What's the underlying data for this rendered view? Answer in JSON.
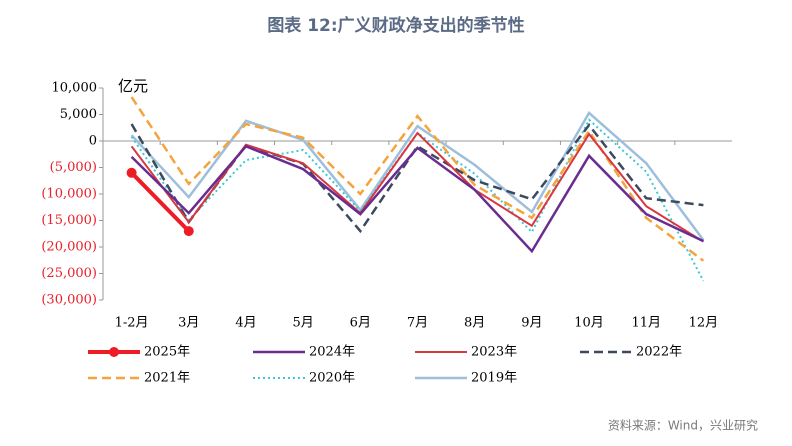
{
  "chart_data": {
    "type": "line",
    "title": "图表 12:广义财政净支出的季节性",
    "y_unit": "亿元",
    "source": "资料来源：Wind，兴业研究",
    "categories": [
      "1-2月",
      "3月",
      "4月",
      "5月",
      "6月",
      "7月",
      "8月",
      "9月",
      "10月",
      "11月",
      "12月"
    ],
    "ylim": [
      -30000,
      10000
    ],
    "yticks": [
      {
        "value": 10000,
        "label": "10,000"
      },
      {
        "value": 5000,
        "label": "5,000"
      },
      0,
      {
        "value": -5000,
        "label": "(5,000)"
      },
      {
        "value": -10000,
        "label": "(10,000)"
      },
      {
        "value": -15000,
        "label": "(15,000)"
      },
      {
        "value": -20000,
        "label": "(20,000)"
      },
      {
        "value": -25000,
        "label": "(25,000)"
      },
      {
        "value": -30000,
        "label": "(30,000)"
      }
    ],
    "series": [
      {
        "name": "2025年",
        "color": "#ee1c25",
        "dash": "solid",
        "width": 4,
        "marker": true,
        "values": [
          -6000,
          -17000,
          null,
          null,
          null,
          null,
          null,
          null,
          null,
          null,
          null
        ]
      },
      {
        "name": "2024年",
        "color": "#6a2c91",
        "dash": "solid",
        "width": 2.5,
        "values": [
          -3000,
          -13600,
          -1000,
          -5300,
          -13800,
          -1300,
          -9200,
          -20800,
          -2800,
          -13800,
          -18900
        ]
      },
      {
        "name": "2023年",
        "color": "#d9363e",
        "dash": "solid",
        "width": 2,
        "values": [
          -1000,
          -15300,
          -700,
          -4200,
          -13600,
          1500,
          -9200,
          -16000,
          1300,
          -12300,
          -19000
        ]
      },
      {
        "name": "2022年",
        "color": "#3b4a5e",
        "dash": "dashed",
        "width": 2.5,
        "values": [
          3200,
          -15300,
          -800,
          -4300,
          -17000,
          -1000,
          -7400,
          -11000,
          3000,
          -10800,
          -12100
        ]
      },
      {
        "name": "2021年",
        "color": "#f5a33c",
        "dash": "dashed",
        "width": 2.5,
        "values": [
          8300,
          -8100,
          3200,
          600,
          -10000,
          4700,
          -8300,
          -14500,
          1900,
          -14500,
          -22600
        ]
      },
      {
        "name": "2020年",
        "color": "#3cc8d6",
        "dash": "dotted",
        "width": 2,
        "values": [
          800,
          -14900,
          -3600,
          -1700,
          -13200,
          1500,
          -6200,
          -17200,
          4000,
          -5800,
          -26400
        ]
      },
      {
        "name": "2019年",
        "color": "#9dbfdc",
        "dash": "solid",
        "width": 2.5,
        "values": [
          1100,
          -10600,
          3800,
          200,
          -13000,
          2800,
          -4500,
          -13400,
          5300,
          -4200,
          -18700
        ]
      }
    ]
  }
}
